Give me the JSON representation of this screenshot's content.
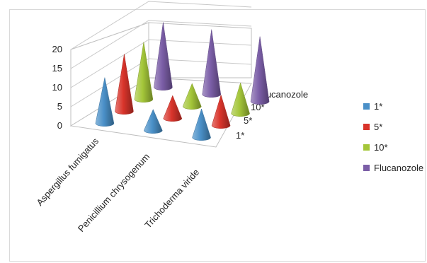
{
  "chart_data": {
    "type": "bar",
    "style": "3d-cone",
    "title": "",
    "xlabel": "",
    "ylabel": "",
    "ylim": [
      0,
      20
    ],
    "yticks": [
      0,
      5,
      10,
      15,
      20
    ],
    "categories": [
      "Aspergillus  fumigatus",
      "Penicillium chrysogenum",
      "Trichoderma viride"
    ],
    "series": [
      {
        "name": "1*",
        "color": "#4a90c8",
        "values": [
          12,
          5.5,
          7.5
        ]
      },
      {
        "name": "5*",
        "color": "#d9342b",
        "values": [
          15,
          6,
          8
        ]
      },
      {
        "name": "10*",
        "color": "#a4c639",
        "values": [
          15,
          6,
          8
        ]
      },
      {
        "name": "Flucanozole",
        "color": "#7b5ea7",
        "values": [
          17,
          17,
          17
        ]
      }
    ],
    "legend_position": "right",
    "grid": true
  }
}
